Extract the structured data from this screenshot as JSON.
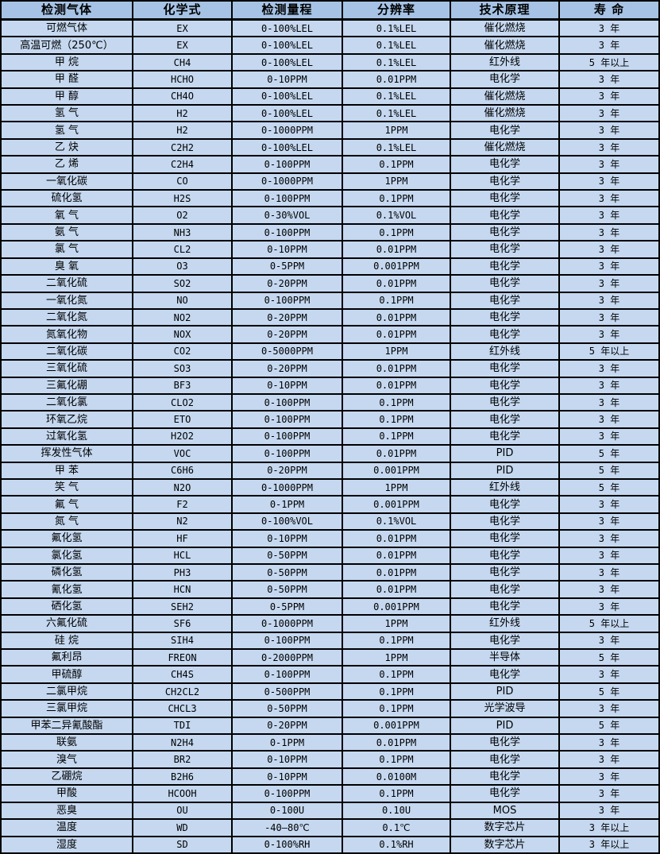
{
  "colors": {
    "header_bg": "#a6c3e5",
    "row_bg": "#c5d8f0",
    "border": "#000000",
    "text": "#000000"
  },
  "table": {
    "columns": [
      "检测气体",
      "化学式",
      "检测量程",
      "分辨率",
      "技术原理",
      "寿 命"
    ],
    "rows": [
      [
        "可燃气体",
        "EX",
        "0-100%LEL",
        "0.1%LEL",
        "催化燃烧",
        "3 年"
      ],
      [
        "高温可燃（250℃）",
        "EX",
        "0-100%LEL",
        "0.1%LEL",
        "催化燃烧",
        "3 年"
      ],
      [
        "甲 烷",
        "CH4",
        "0-100%LEL",
        "0.1%LEL",
        "红外线",
        "5 年以上"
      ],
      [
        "甲 醛",
        "HCHO",
        "0-10PPM",
        "0.01PPM",
        "电化学",
        "3 年"
      ],
      [
        "甲 醇",
        "CH4O",
        "0-100%LEL",
        "0.1%LEL",
        "催化燃烧",
        "3 年"
      ],
      [
        "氢 气",
        "H2",
        "0-100%LEL",
        "0.1%LEL",
        "催化燃烧",
        "3 年"
      ],
      [
        "氢 气",
        "H2",
        "0-1000PPM",
        "1PPM",
        "电化学",
        "3 年"
      ],
      [
        "乙 炔",
        "C2H2",
        "0-100%LEL",
        "0.1%LEL",
        "催化燃烧",
        "3 年"
      ],
      [
        "乙 烯",
        "C2H4",
        "0-100PPM",
        "0.1PPM",
        "电化学",
        "3 年"
      ],
      [
        "一氧化碳",
        "CO",
        "0-1000PPM",
        "1PPM",
        "电化学",
        "3 年"
      ],
      [
        "硫化氢",
        "H2S",
        "0-100PPM",
        "0.1PPM",
        "电化学",
        "3 年"
      ],
      [
        "氧 气",
        "O2",
        "0-30%VOL",
        "0.1%VOL",
        "电化学",
        "3 年"
      ],
      [
        "氨 气",
        "NH3",
        "0-100PPM",
        "0.1PPM",
        "电化学",
        "3 年"
      ],
      [
        "氯 气",
        "CL2",
        "0-10PPM",
        "0.01PPM",
        "电化学",
        "3 年"
      ],
      [
        "臭 氧",
        "O3",
        "0-5PPM",
        "0.001PPM",
        "电化学",
        "3 年"
      ],
      [
        "二氧化硫",
        "SO2",
        "0-20PPM",
        "0.01PPM",
        "电化学",
        "3 年"
      ],
      [
        "一氧化氮",
        "NO",
        "0-100PPM",
        "0.1PPM",
        "电化学",
        "3 年"
      ],
      [
        "二氧化氮",
        "NO2",
        "0-20PPM",
        "0.01PPM",
        "电化学",
        "3 年"
      ],
      [
        "氮氧化物",
        "NOX",
        "0-20PPM",
        "0.01PPM",
        "电化学",
        "3 年"
      ],
      [
        "二氧化碳",
        "CO2",
        "0-5000PPM",
        "1PPM",
        "红外线",
        "5 年以上"
      ],
      [
        "三氧化硫",
        "SO3",
        "0-20PPM",
        "0.01PPM",
        "电化学",
        "3 年"
      ],
      [
        "三氟化硼",
        "BF3",
        "0-10PPM",
        "0.01PPM",
        "电化学",
        "3 年"
      ],
      [
        "二氧化氯",
        "CLO2",
        "0-100PPM",
        "0.1PPM",
        "电化学",
        "3 年"
      ],
      [
        "环氧乙烷",
        "ETO",
        "0-100PPM",
        "0.1PPM",
        "电化学",
        "3 年"
      ],
      [
        "过氧化氢",
        "H2O2",
        "0-100PPM",
        "0.1PPM",
        "电化学",
        "3 年"
      ],
      [
        "挥发性气体",
        "VOC",
        "0-100PPM",
        "0.01PPM",
        "PID",
        "5 年"
      ],
      [
        "甲 苯",
        "C6H6",
        "0-20PPM",
        "0.001PPM",
        "PID",
        "5 年"
      ],
      [
        "笑 气",
        "N2O",
        "0-1000PPM",
        "1PPM",
        "红外线",
        "5 年"
      ],
      [
        "氟 气",
        "F2",
        "0-1PPM",
        "0.001PPM",
        "电化学",
        "3 年"
      ],
      [
        "氮 气",
        "N2",
        "0-100%VOL",
        "0.1%VOL",
        "电化学",
        "3 年"
      ],
      [
        "氟化氢",
        "HF",
        "0-10PPM",
        "0.01PPM",
        "电化学",
        "3 年"
      ],
      [
        "氯化氢",
        "HCL",
        "0-50PPM",
        "0.01PPM",
        "电化学",
        "3 年"
      ],
      [
        "磷化氢",
        "PH3",
        "0-50PPM",
        "0.01PPM",
        "电化学",
        "3 年"
      ],
      [
        "氰化氢",
        "HCN",
        "0-50PPM",
        "0.01PPM",
        "电化学",
        "3 年"
      ],
      [
        "硒化氢",
        "SEH2",
        "0-5PPM",
        "0.001PPM",
        "电化学",
        "3 年"
      ],
      [
        "六氟化硫",
        "SF6",
        "0-1000PPM",
        "1PPM",
        "红外线",
        "5 年以上"
      ],
      [
        "硅 烷",
        "SIH4",
        "0-100PPM",
        "0.1PPM",
        "电化学",
        "3 年"
      ],
      [
        "氟利昂",
        "FREON",
        "0-2000PPM",
        "1PPM",
        "半导体",
        "5 年"
      ],
      [
        "甲硫醇",
        "CH4S",
        "0-100PPM",
        "0.1PPM",
        "电化学",
        "3 年"
      ],
      [
        "二氯甲烷",
        "CH2CL2",
        "0-500PPM",
        "0.1PPM",
        "PID",
        "5 年"
      ],
      [
        "三氯甲烷",
        "CHCL3",
        "0-50PPM",
        "0.1PPM",
        "光学波导",
        "3 年"
      ],
      [
        "甲苯二异氰酸酯",
        "TDI",
        "0-20PPM",
        "0.001PPM",
        "PID",
        "5 年"
      ],
      [
        "联氨",
        "N2H4",
        "0-1PPM",
        "0.01PPM",
        "电化学",
        "3 年"
      ],
      [
        "溴气",
        "BR2",
        "0-10PPM",
        "0.1PPM",
        "电化学",
        "3 年"
      ],
      [
        "乙硼烷",
        "B2H6",
        "0-10PPM",
        "0.0100M",
        "电化学",
        "3 年"
      ],
      [
        "甲酸",
        "HCOOH",
        "0-100PPM",
        "0.1PPM",
        "电化学",
        "3 年"
      ],
      [
        "恶臭",
        "OU",
        "0-100U",
        "0.10U",
        "MOS",
        "3 年"
      ],
      [
        "温度",
        "WD",
        "-40—80℃",
        "0.1℃",
        "数字芯片",
        "3 年以上"
      ],
      [
        "湿度",
        "SD",
        "0-100%RH",
        "0.1%RH",
        "数字芯片",
        "3 年以上"
      ]
    ]
  }
}
